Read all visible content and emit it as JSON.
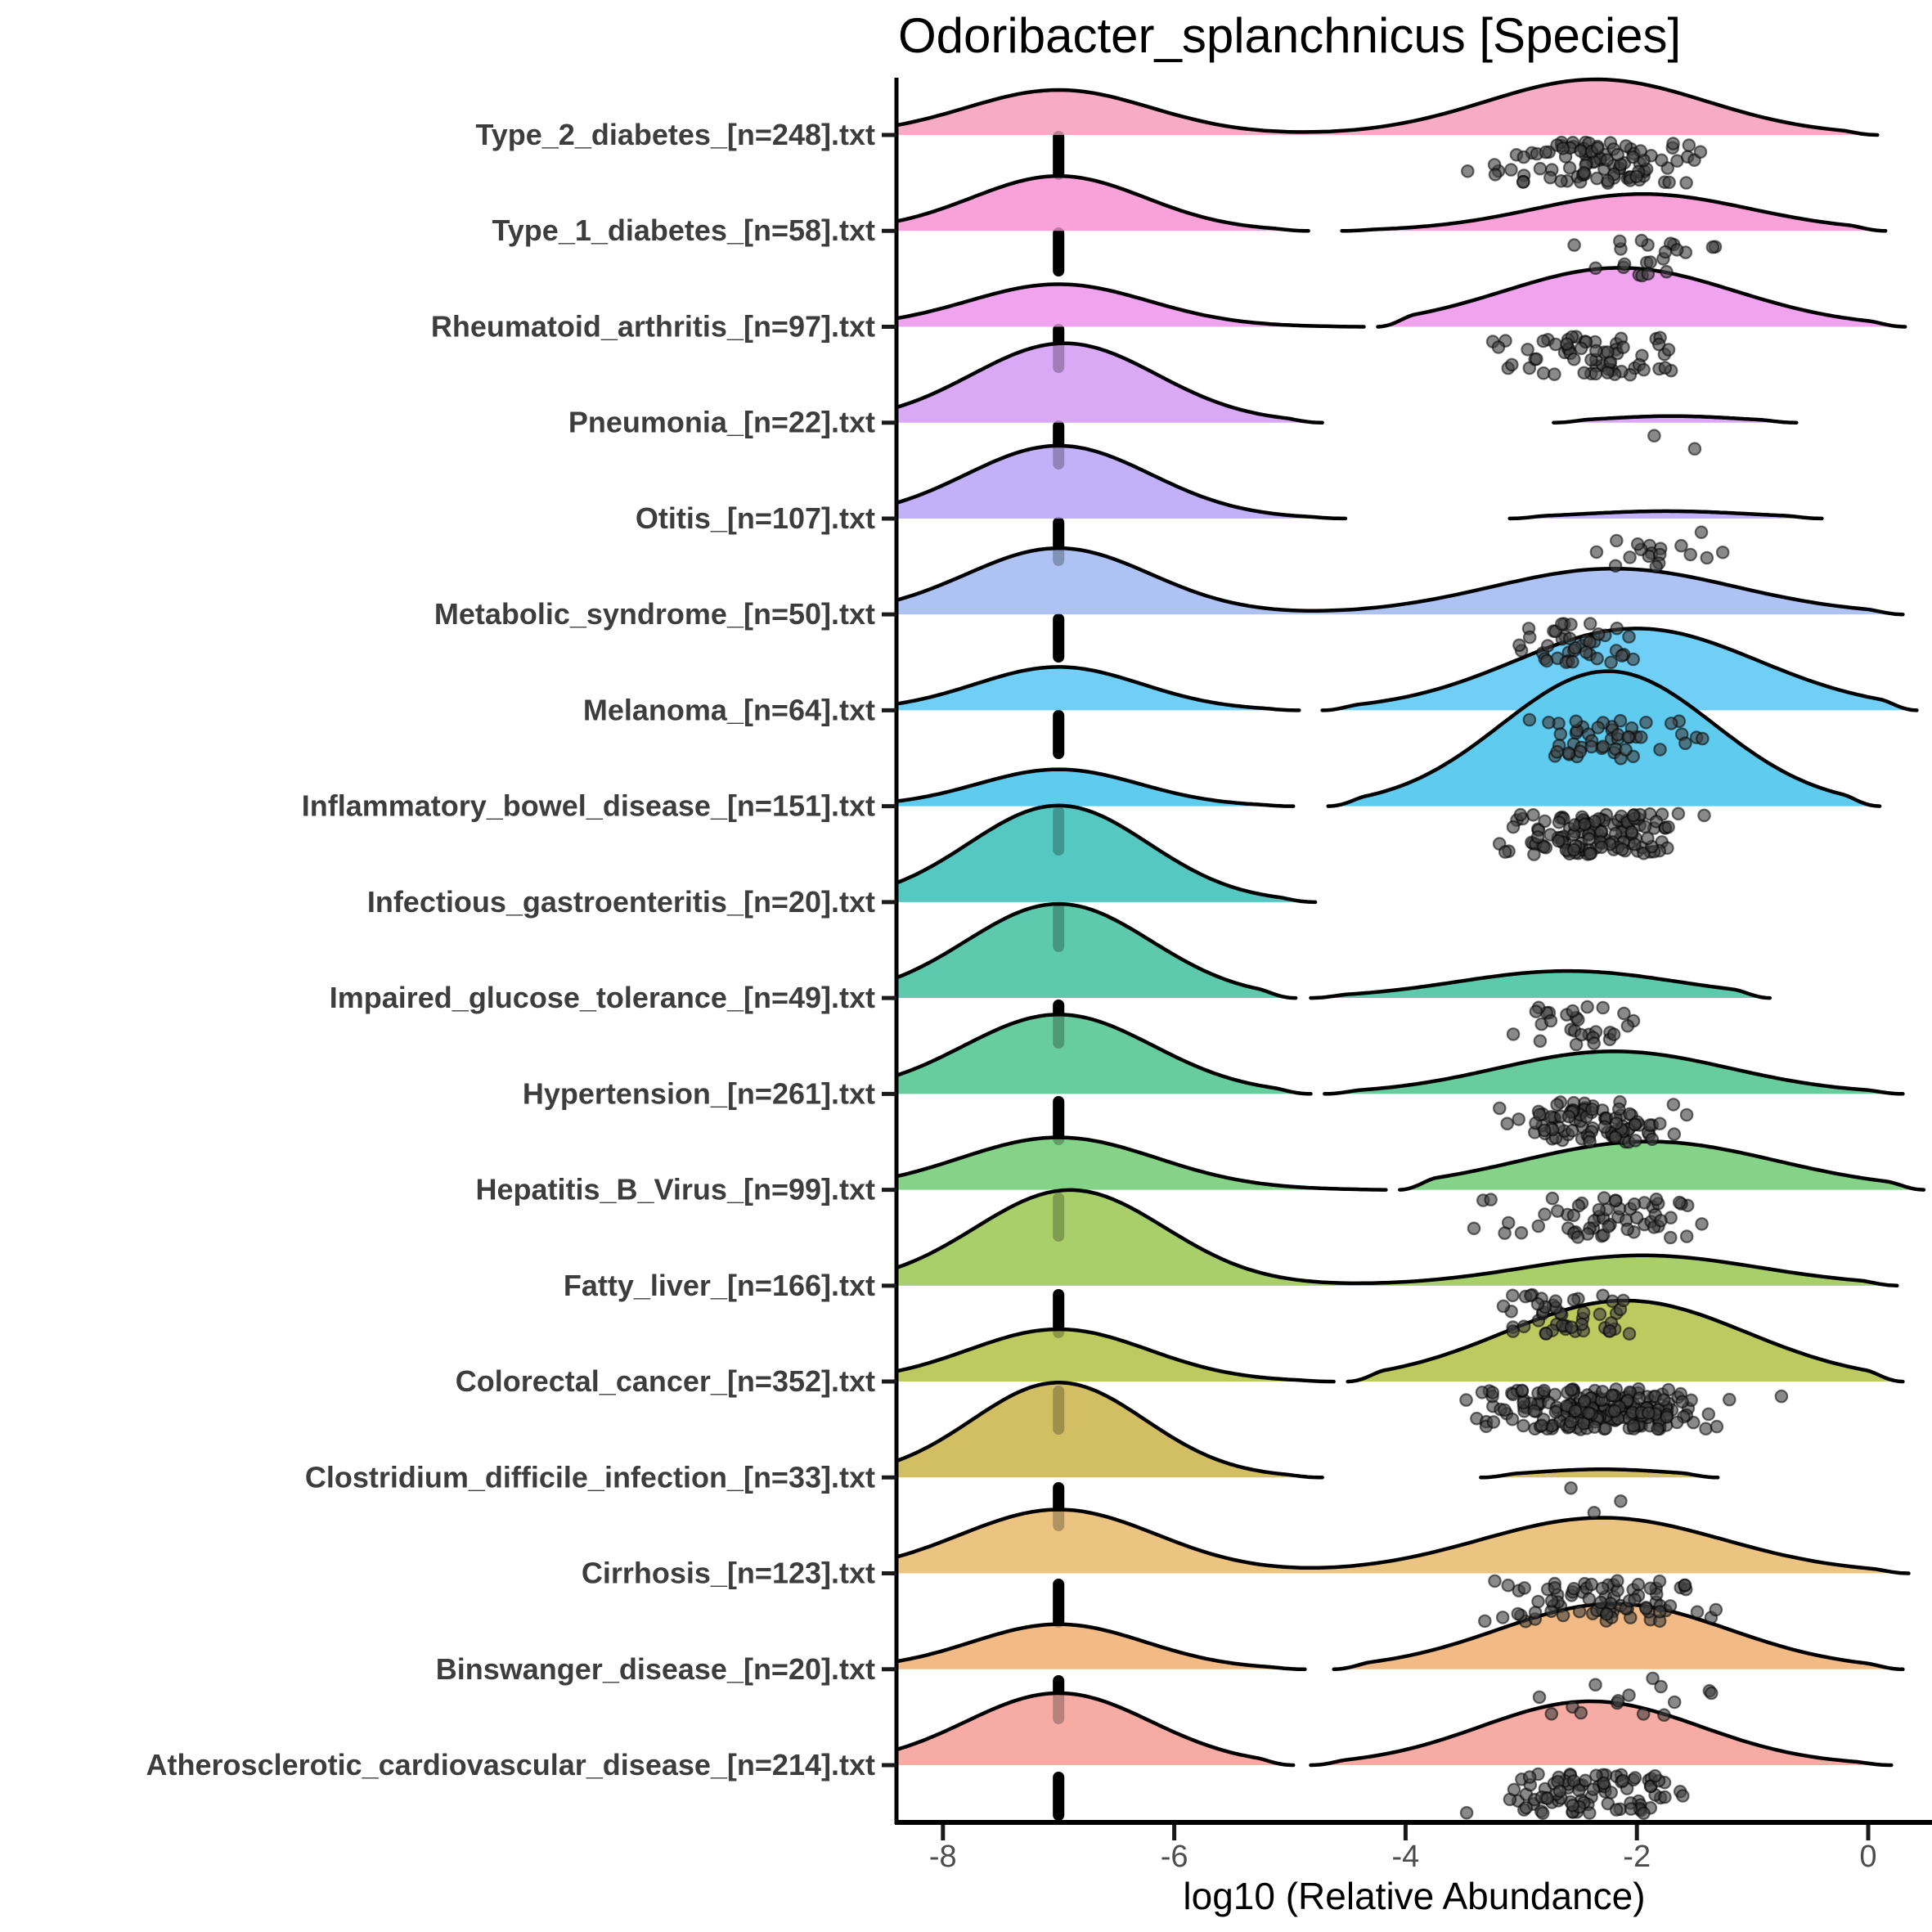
{
  "title": "Odoribacter_splanchnicus [Species]",
  "chart_data": {
    "type": "ridgeline",
    "title": "Odoribacter_splanchnicus [Species]",
    "xlabel": "log10 (Relative Abundance)",
    "x_ticks": [
      -8,
      -6,
      -4,
      -2,
      0
    ],
    "x_range": [
      -8.4,
      0.55
    ],
    "grid": "off",
    "legend": "none",
    "reference_line": {
      "x": -7,
      "style": "dashed",
      "color": "#000000"
    },
    "point_style": {
      "shape": "circle",
      "radius": 7.2,
      "fill": "#404040",
      "fill_opacity": 0.62,
      "stroke": "#000000"
    },
    "categories": [
      {
        "label": "Type_2_diabetes_[n=248].txt",
        "color": "#F8ABC4",
        "segments": [
          {
            "range": [
              -8.4,
              0.08
            ],
            "gauss": [
              {
                "mu": -7.0,
                "sd": 0.8,
                "amp": 55
              },
              {
                "mu": -2.35,
                "sd": 0.95,
                "amp": 68
              }
            ]
          }
        ],
        "points": {
          "count": 95,
          "center": -2.35,
          "sd": 0.42,
          "min": -3.6,
          "max": -1.42
        }
      },
      {
        "label": "Type_1_diabetes_[n=58].txt",
        "color": "#F9A2DA",
        "segments": [
          {
            "range": [
              -8.4,
              -4.84
            ],
            "gauss": [
              {
                "mu": -7.0,
                "sd": 0.75,
                "amp": 67
              }
            ]
          },
          {
            "range": [
              -4.55,
              0.15
            ],
            "gauss": [
              {
                "mu": -1.95,
                "sd": 0.92,
                "amp": 45
              }
            ]
          }
        ],
        "points": {
          "count": 22,
          "center": -1.92,
          "sd": 0.3,
          "min": -2.6,
          "max": -1.28
        }
      },
      {
        "label": "Rheumatoid_arthritis_[n=97].txt",
        "color": "#F0A3EE",
        "segments": [
          {
            "range": [
              -8.4,
              -4.36
            ],
            "gauss": [
              {
                "mu": -7.0,
                "sd": 0.78,
                "amp": 52
              }
            ]
          },
          {
            "range": [
              -4.24,
              0.32
            ],
            "gauss": [
              {
                "mu": -2.15,
                "sd": 1.0,
                "amp": 72
              }
            ]
          }
        ],
        "points": {
          "count": 62,
          "center": -2.3,
          "sd": 0.45,
          "min": -3.3,
          "max": -1.35
        }
      },
      {
        "label": "Pneumonia_[n=22].txt",
        "color": "#D9A9F6",
        "segments": [
          {
            "range": [
              -8.4,
              -4.72
            ],
            "gauss": [
              {
                "mu": -6.95,
                "sd": 0.8,
                "amp": 97
              }
            ]
          },
          {
            "range": [
              -2.72,
              -0.62
            ],
            "gauss": [
              {
                "mu": -1.7,
                "sd": 0.6,
                "amp": 8
              }
            ]
          }
        ],
        "points_explicit": [
          [
            -1.85,
            16
          ],
          [
            -1.5,
            32
          ]
        ]
      },
      {
        "label": "Otitis_[n=107].txt",
        "color": "#C2B1F8",
        "segments": [
          {
            "range": [
              -8.4,
              -4.52
            ],
            "gauss": [
              {
                "mu": -7.0,
                "sd": 0.8,
                "amp": 89
              }
            ]
          },
          {
            "range": [
              -3.1,
              -0.4
            ],
            "gauss": [
              {
                "mu": -1.75,
                "sd": 0.75,
                "amp": 9
              }
            ]
          }
        ],
        "points": {
          "count": 18,
          "center": -1.75,
          "sd": 0.28,
          "min": -2.4,
          "max": -1.25
        }
      },
      {
        "label": "Metabolic_syndrome_[n=50].txt",
        "color": "#AEC3F3",
        "segments": [
          {
            "range": [
              -8.4,
              0.3
            ],
            "gauss": [
              {
                "mu": -7.0,
                "sd": 0.8,
                "amp": 81
              },
              {
                "mu": -2.2,
                "sd": 1.05,
                "amp": 56
              }
            ]
          }
        ],
        "points": {
          "count": 40,
          "center": -2.55,
          "sd": 0.28,
          "min": -3.3,
          "max": -1.95
        }
      },
      {
        "label": "Melanoma_[n=64].txt",
        "color": "#70CFF6",
        "segments": [
          {
            "range": [
              -8.4,
              -4.92
            ],
            "gauss": [
              {
                "mu": -7.0,
                "sd": 0.72,
                "amp": 53
              }
            ]
          },
          {
            "range": [
              -4.72,
              0.42
            ],
            "gauss": [
              {
                "mu": -2.0,
                "sd": 1.05,
                "amp": 100
              }
            ]
          }
        ],
        "points": {
          "count": 48,
          "center": -2.25,
          "sd": 0.4,
          "min": -3.4,
          "max": -1.3
        }
      },
      {
        "label": "Inflammatory_bowel_disease_[n=151].txt",
        "color": "#5ECBEF",
        "segments": [
          {
            "range": [
              -8.4,
              -4.97
            ],
            "gauss": [
              {
                "mu": -7.0,
                "sd": 0.7,
                "amp": 45
              }
            ]
          },
          {
            "range": [
              -4.67,
              0.1
            ],
            "gauss": [
              {
                "mu": -2.25,
                "sd": 0.92,
                "amp": 165
              }
            ]
          }
        ],
        "points": {
          "count": 125,
          "center": -2.3,
          "sd": 0.42,
          "min": -3.65,
          "max": -1.33
        }
      },
      {
        "label": "Infectious_gastroenteritis_[n=20].txt",
        "color": "#55C8C2",
        "segments": [
          {
            "range": [
              -8.4,
              -4.78
            ],
            "gauss": [
              {
                "mu": -7.0,
                "sd": 0.78,
                "amp": 118
              }
            ]
          }
        ],
        "points": {
          "count": 0,
          "center": 0,
          "sd": 1,
          "min": 0,
          "max": 0
        }
      },
      {
        "label": "Impaired_glucose_tolerance_[n=49].txt",
        "color": "#5DCAAE",
        "segments": [
          {
            "range": [
              -8.4,
              -4.95
            ],
            "gauss": [
              {
                "mu": -7.0,
                "sd": 0.8,
                "amp": 115
              }
            ]
          },
          {
            "range": [
              -4.82,
              -0.85
            ],
            "gauss": [
              {
                "mu": -2.6,
                "sd": 0.95,
                "amp": 33
              }
            ]
          }
        ],
        "points": {
          "count": 28,
          "center": -2.45,
          "sd": 0.3,
          "min": -3.1,
          "max": -1.9
        }
      },
      {
        "label": "Hypertension_[n=261].txt",
        "color": "#67CD9E",
        "segments": [
          {
            "range": [
              -8.4,
              -4.82
            ],
            "gauss": [
              {
                "mu": -7.0,
                "sd": 0.82,
                "amp": 97
              }
            ]
          },
          {
            "range": [
              -4.7,
              0.3
            ],
            "gauss": [
              {
                "mu": -2.2,
                "sd": 1.0,
                "amp": 52
              }
            ]
          }
        ],
        "points": {
          "count": 92,
          "center": -2.4,
          "sd": 0.42,
          "min": -3.3,
          "max": -1.35
        }
      },
      {
        "label": "Hepatitis_B_Virus_[n=99].txt",
        "color": "#85D289",
        "segments": [
          {
            "range": [
              -8.4,
              -4.17
            ],
            "gauss": [
              {
                "mu": -7.0,
                "sd": 0.85,
                "amp": 64
              }
            ]
          },
          {
            "range": [
              -4.05,
              0.48
            ],
            "gauss": [
              {
                "mu": -1.9,
                "sd": 1.1,
                "amp": 59
              }
            ]
          }
        ],
        "points": {
          "count": 58,
          "center": -2.3,
          "sd": 0.5,
          "min": -3.5,
          "max": -1.3
        }
      },
      {
        "label": "Fatty_liver_[n=166].txt",
        "color": "#A8CF69",
        "segments": [
          {
            "range": [
              -8.4,
              0.25
            ],
            "gauss": [
              {
                "mu": -6.9,
                "sd": 0.82,
                "amp": 117
              },
              {
                "mu": -1.95,
                "sd": 1.0,
                "amp": 37
              }
            ]
          }
        ],
        "points": {
          "count": 48,
          "center": -2.55,
          "sd": 0.3,
          "min": -3.3,
          "max": -1.9
        }
      },
      {
        "label": "Colorectal_cancer_[n=352].txt",
        "color": "#BDCA5F",
        "segments": [
          {
            "range": [
              -8.4,
              -4.62
            ],
            "gauss": [
              {
                "mu": -7.0,
                "sd": 0.78,
                "amp": 64
              }
            ]
          },
          {
            "range": [
              -4.5,
              0.3
            ],
            "gauss": [
              {
                "mu": -2.1,
                "sd": 1.05,
                "amp": 99
              }
            ]
          }
        ],
        "points": {
          "count": 205,
          "center": -2.3,
          "sd": 0.46,
          "min": -3.6,
          "max": -1.3
        },
        "points_extra": [
          [
            -1.2,
            22
          ],
          [
            -0.75,
            18
          ]
        ]
      },
      {
        "label": "Clostridium_difficile_infection_[n=33].txt",
        "color": "#D3BF63",
        "segments": [
          {
            "range": [
              -8.4,
              -4.72
            ],
            "gauss": [
              {
                "mu": -7.0,
                "sd": 0.75,
                "amp": 116
              }
            ]
          },
          {
            "range": [
              -3.35,
              -1.3
            ],
            "gauss": [
              {
                "mu": -2.3,
                "sd": 0.62,
                "amp": 10
              }
            ]
          }
        ],
        "points_explicit": [
          [
            -2.57,
            13
          ],
          [
            -2.14,
            29
          ],
          [
            -2.37,
            43
          ]
        ]
      },
      {
        "label": "Cirrhosis_[n=123].txt",
        "color": "#EAC480",
        "segments": [
          {
            "range": [
              -8.4,
              0.35
            ],
            "gauss": [
              {
                "mu": -7.0,
                "sd": 0.85,
                "amp": 78
              },
              {
                "mu": -2.3,
                "sd": 1.05,
                "amp": 68
              }
            ]
          }
        ],
        "points": {
          "count": 80,
          "center": -2.3,
          "sd": 0.5,
          "min": -3.55,
          "max": -1.3
        }
      },
      {
        "label": "Binswanger_disease_[n=20].txt",
        "color": "#F2BA85",
        "segments": [
          {
            "range": [
              -8.4,
              -4.87
            ],
            "gauss": [
              {
                "mu": -7.0,
                "sd": 0.75,
                "amp": 55
              }
            ]
          },
          {
            "range": [
              -4.62,
              0.3
            ],
            "gauss": [
              {
                "mu": -2.2,
                "sd": 1.0,
                "amp": 80
              }
            ]
          }
        ],
        "points": {
          "count": 15,
          "center": -2.15,
          "sd": 0.5,
          "min": -3.2,
          "max": -1.3
        }
      },
      {
        "label": "Atherosclerotic_cardiovascular_disease_[n=214].txt",
        "color": "#F6ACA4",
        "segments": [
          {
            "range": [
              -8.4,
              -4.97
            ],
            "gauss": [
              {
                "mu": -7.0,
                "sd": 0.8,
                "amp": 88
              }
            ]
          },
          {
            "range": [
              -4.82,
              0.2
            ],
            "gauss": [
              {
                "mu": -2.4,
                "sd": 0.95,
                "amp": 78
              }
            ]
          }
        ],
        "points": {
          "count": 88,
          "center": -2.45,
          "sd": 0.42,
          "min": -3.6,
          "max": -1.35
        }
      }
    ]
  }
}
